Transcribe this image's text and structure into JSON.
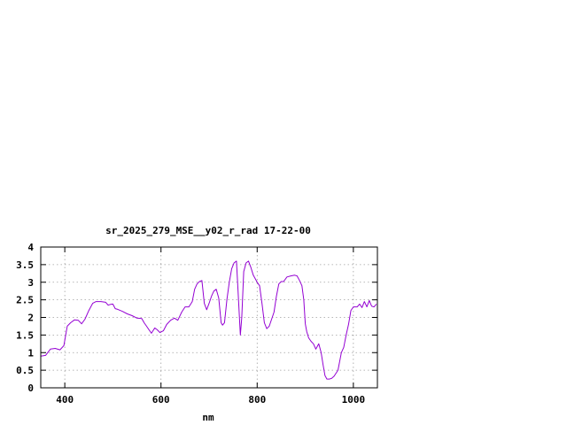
{
  "chart_data": {
    "type": "line",
    "title": "sr_2025_279_MSE__y02_r_rad 17-22-00",
    "xlabel": "nm",
    "ylabel": "",
    "xlim": [
      350,
      1050
    ],
    "ylim": [
      0,
      4
    ],
    "grid": true,
    "x_ticks": [
      {
        "value": 400,
        "label": "400"
      },
      {
        "value": 600,
        "label": "600"
      },
      {
        "value": 800,
        "label": "800"
      },
      {
        "value": 1000,
        "label": "1000"
      }
    ],
    "y_ticks": [
      {
        "value": 0,
        "label": "0"
      },
      {
        "value": 0.5,
        "label": "0.5"
      },
      {
        "value": 1,
        "label": "1"
      },
      {
        "value": 1.5,
        "label": "1.5"
      },
      {
        "value": 2,
        "label": "2"
      },
      {
        "value": 2.5,
        "label": "2.5"
      },
      {
        "value": 3,
        "label": "3"
      },
      {
        "value": 3.5,
        "label": "3.5"
      },
      {
        "value": 4,
        "label": "4"
      }
    ],
    "series": [
      {
        "color": "#9400d3",
        "points": [
          [
            350,
            0.9
          ],
          [
            360,
            0.92
          ],
          [
            370,
            1.1
          ],
          [
            380,
            1.12
          ],
          [
            390,
            1.08
          ],
          [
            398,
            1.2
          ],
          [
            405,
            1.75
          ],
          [
            412,
            1.85
          ],
          [
            420,
            1.93
          ],
          [
            428,
            1.92
          ],
          [
            435,
            1.82
          ],
          [
            442,
            1.95
          ],
          [
            450,
            2.2
          ],
          [
            458,
            2.4
          ],
          [
            465,
            2.45
          ],
          [
            475,
            2.45
          ],
          [
            485,
            2.43
          ],
          [
            490,
            2.35
          ],
          [
            495,
            2.37
          ],
          [
            500,
            2.38
          ],
          [
            505,
            2.25
          ],
          [
            510,
            2.23
          ],
          [
            520,
            2.17
          ],
          [
            530,
            2.1
          ],
          [
            540,
            2.05
          ],
          [
            550,
            1.98
          ],
          [
            560,
            1.97
          ],
          [
            565,
            1.85
          ],
          [
            570,
            1.75
          ],
          [
            575,
            1.65
          ],
          [
            580,
            1.55
          ],
          [
            587,
            1.7
          ],
          [
            592,
            1.65
          ],
          [
            598,
            1.57
          ],
          [
            605,
            1.62
          ],
          [
            612,
            1.8
          ],
          [
            620,
            1.92
          ],
          [
            628,
            1.98
          ],
          [
            635,
            1.92
          ],
          [
            643,
            2.15
          ],
          [
            650,
            2.3
          ],
          [
            658,
            2.3
          ],
          [
            665,
            2.45
          ],
          [
            670,
            2.8
          ],
          [
            675,
            2.95
          ],
          [
            680,
            3.02
          ],
          [
            685,
            3.05
          ],
          [
            690,
            2.4
          ],
          [
            695,
            2.22
          ],
          [
            700,
            2.4
          ],
          [
            705,
            2.6
          ],
          [
            710,
            2.75
          ],
          [
            715,
            2.8
          ],
          [
            720,
            2.55
          ],
          [
            725,
            1.85
          ],
          [
            728,
            1.78
          ],
          [
            732,
            1.85
          ],
          [
            737,
            2.5
          ],
          [
            742,
            3.0
          ],
          [
            747,
            3.38
          ],
          [
            752,
            3.55
          ],
          [
            757,
            3.6
          ],
          [
            760,
            2.8
          ],
          [
            765,
            1.5
          ],
          [
            768,
            2.0
          ],
          [
            772,
            3.3
          ],
          [
            777,
            3.55
          ],
          [
            782,
            3.6
          ],
          [
            787,
            3.42
          ],
          [
            792,
            3.2
          ],
          [
            800,
            3.0
          ],
          [
            805,
            2.9
          ],
          [
            810,
            2.4
          ],
          [
            815,
            1.85
          ],
          [
            820,
            1.68
          ],
          [
            825,
            1.75
          ],
          [
            830,
            1.95
          ],
          [
            835,
            2.15
          ],
          [
            840,
            2.6
          ],
          [
            845,
            2.95
          ],
          [
            850,
            3.02
          ],
          [
            855,
            3.02
          ],
          [
            862,
            3.15
          ],
          [
            870,
            3.18
          ],
          [
            878,
            3.2
          ],
          [
            883,
            3.18
          ],
          [
            888,
            3.05
          ],
          [
            893,
            2.9
          ],
          [
            897,
            2.5
          ],
          [
            900,
            1.82
          ],
          [
            903,
            1.6
          ],
          [
            907,
            1.42
          ],
          [
            912,
            1.32
          ],
          [
            917,
            1.25
          ],
          [
            922,
            1.1
          ],
          [
            928,
            1.25
          ],
          [
            933,
            1.0
          ],
          [
            937,
            0.65
          ],
          [
            941,
            0.35
          ],
          [
            945,
            0.25
          ],
          [
            950,
            0.25
          ],
          [
            955,
            0.27
          ],
          [
            960,
            0.33
          ],
          [
            968,
            0.5
          ],
          [
            975,
            1.0
          ],
          [
            980,
            1.15
          ],
          [
            985,
            1.5
          ],
          [
            990,
            1.8
          ],
          [
            995,
            2.2
          ],
          [
            1000,
            2.3
          ],
          [
            1008,
            2.3
          ],
          [
            1013,
            2.38
          ],
          [
            1018,
            2.28
          ],
          [
            1023,
            2.45
          ],
          [
            1028,
            2.3
          ],
          [
            1033,
            2.48
          ],
          [
            1038,
            2.32
          ],
          [
            1043,
            2.3
          ],
          [
            1048,
            2.38
          ]
        ]
      }
    ]
  }
}
